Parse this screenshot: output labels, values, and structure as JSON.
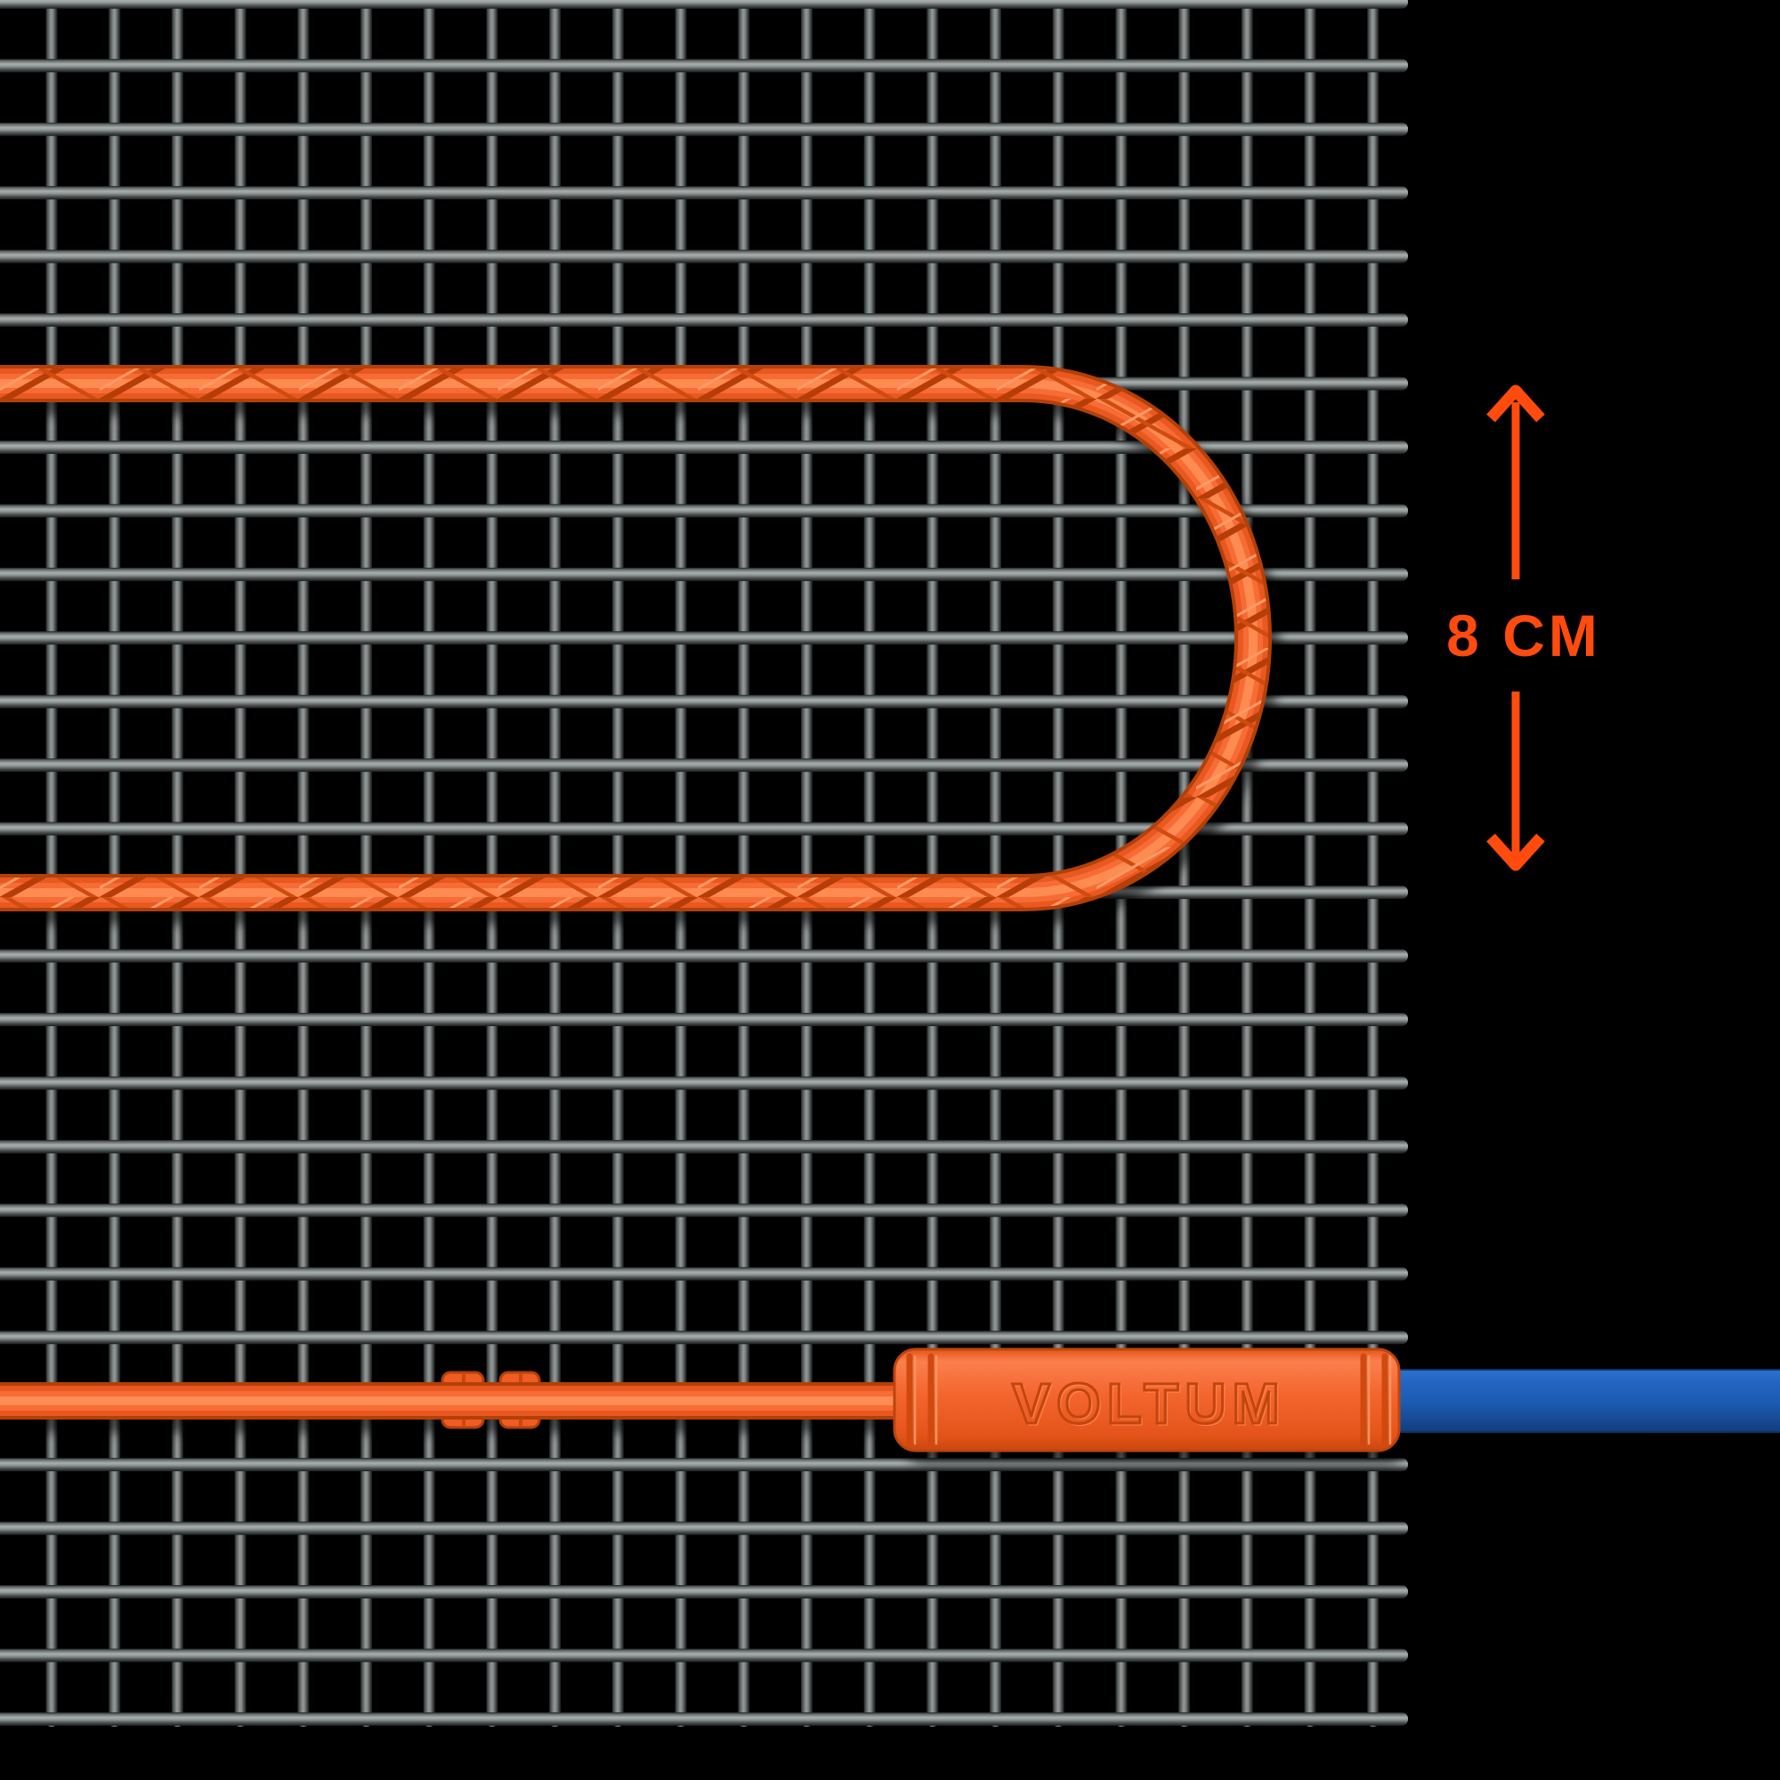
{
  "illustration": {
    "brand_label": "VOLTUM",
    "spacing_label": "8 CM",
    "spacing_value_cm": 8,
    "colors": {
      "background": "#000000",
      "annotation": "#ff4b0d",
      "cable-body": "#e85820",
      "cable-outline": "#b34008",
      "cable-highlight": "#ff9057",
      "connector-body": "#f4622a",
      "power-cable-blue": "#1d5cb4",
      "mesh-wire": "#8a9090"
    }
  }
}
